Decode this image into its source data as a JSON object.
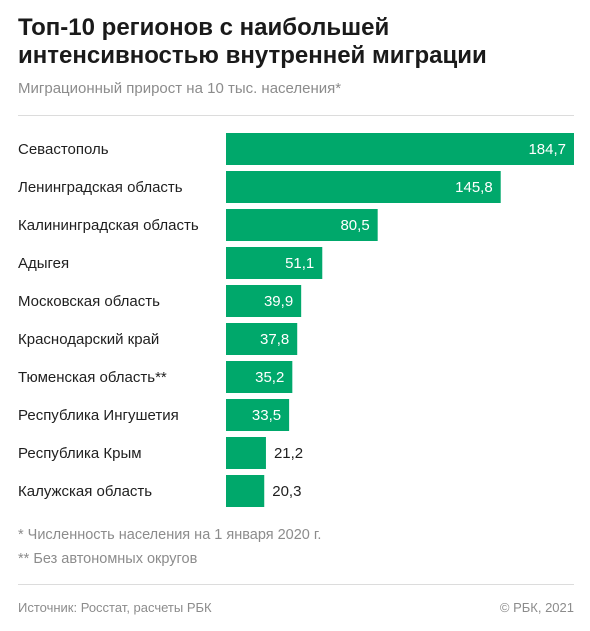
{
  "header": {
    "title": "Топ-10 регионов с наибольшей интенсивностью внутренней миграции",
    "subtitle": "Миграционный прирост на 10 тыс. населения*"
  },
  "footnotes": [
    "* Численность населения на 1 января 2020 г.",
    "** Без автономных округов"
  ],
  "footer": {
    "source": "Источник: Росстат, расчеты РБК",
    "copyright": "© РБК, 2021"
  },
  "chart_data": {
    "type": "bar",
    "orientation": "horizontal",
    "categories": [
      "Севастополь",
      "Ленинградская область",
      "Калининградская область",
      "Адыгея",
      "Московская область",
      "Краснодарский край",
      "Тюменская область**",
      "Республика Ингушетия",
      "Республика Крым",
      "Калужская область"
    ],
    "values": [
      184.7,
      145.8,
      80.5,
      51.1,
      39.9,
      37.8,
      35.2,
      33.5,
      21.2,
      20.3
    ],
    "value_labels": [
      "184,7",
      "145,8",
      "80,5",
      "51,1",
      "39,9",
      "37,8",
      "35,2",
      "33,5",
      "21,2",
      "20,3"
    ],
    "xlim": [
      0,
      184.7
    ],
    "bar_color": "#00a86b",
    "grid": false,
    "legend": "none"
  }
}
